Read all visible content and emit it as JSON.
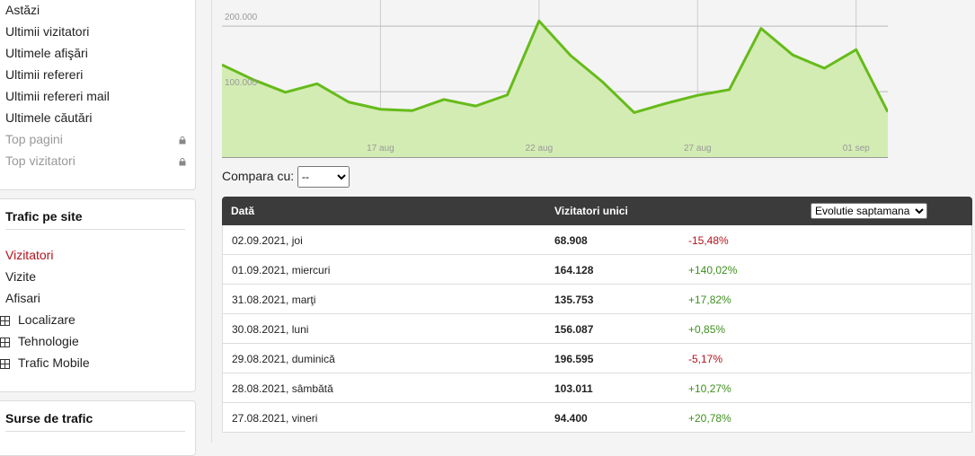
{
  "sidebar": {
    "menu": [
      "Astăzi",
      "Ultimii vizitatori",
      "Ultimele afişări",
      "Ultimii refereri",
      "Ultimii refereri mail",
      "Ultimele căutări"
    ],
    "locked_menu": [
      "Top pagini",
      "Top vizitatori"
    ],
    "sections": [
      {
        "title": "Trafic pe site",
        "active": "Vizitatori",
        "items": [
          "Vizite",
          "Afisari"
        ],
        "groups": [
          "Localizare",
          "Tehnologie",
          "Trafic Mobile"
        ]
      },
      {
        "title": "Surse de trafic"
      }
    ]
  },
  "chart_data": {
    "type": "area",
    "color": "#66bb1a",
    "fill": "#d3ecb3",
    "grid": true,
    "categories": [
      null,
      null,
      null,
      null,
      null,
      "17 aug",
      null,
      null,
      null,
      null,
      "22 aug",
      null,
      null,
      null,
      null,
      "27 aug",
      null,
      null,
      null,
      null,
      "01 sep",
      null
    ],
    "values": [
      141000,
      118000,
      99000,
      112000,
      84000,
      73000,
      71000,
      88000,
      78000,
      95000,
      208000,
      155000,
      115000,
      68000,
      82000,
      94400,
      103011,
      196595,
      156087,
      135753,
      164128,
      68908
    ],
    "ylim": [
      0,
      240000
    ],
    "yticks": [
      {
        "value": 100000,
        "label": "100.000"
      },
      {
        "value": 200000,
        "label": "200.000"
      }
    ]
  },
  "compare": {
    "label": "Compara cu:",
    "option": "--"
  },
  "table": {
    "headers": [
      "Dată",
      "Vizitatori unici"
    ],
    "select": "Evolutie saptamana",
    "rows": [
      [
        "02.09.2021, joi",
        "68.908",
        "-15,48%"
      ],
      [
        "01.09.2021, miercuri",
        "164.128",
        "+140,02%"
      ],
      [
        "31.08.2021, marţi",
        "135.753",
        "+17,82%"
      ],
      [
        "30.08.2021, luni",
        "156.087",
        "+0,85%"
      ],
      [
        "29.08.2021, duminică",
        "196.595",
        "-5,17%"
      ],
      [
        "28.08.2021, sâmbătă",
        "103.011",
        "+10,27%"
      ],
      [
        "27.08.2021, vineri",
        "94.400",
        "+20,78%"
      ]
    ]
  }
}
